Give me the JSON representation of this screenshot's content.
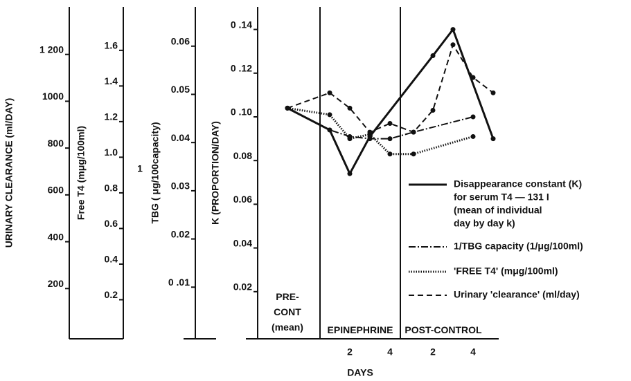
{
  "chart_data": {
    "type": "line",
    "x_label": "DAYS",
    "categories": [
      null,
      null,
      "2",
      null,
      "4",
      null,
      "2",
      null,
      "4",
      null
    ],
    "phases": [
      "PRE-\nCONT\n(mean)",
      "EPINEPHRINE",
      "POST-CONTROL"
    ],
    "axes": [
      {
        "label": "URINARY CLEARANCE (ml/DAY)",
        "ylim": [
          0,
          1400
        ],
        "yticks": [
          200,
          400,
          600,
          800,
          1000,
          {
            "value": 1200,
            "label": "1 200"
          }
        ]
      },
      {
        "label": "Free T4 (mμg/100ml)",
        "ylim": [
          0,
          1.84
        ],
        "yticks": [
          0.2,
          0.4,
          0.6,
          0.8,
          {
            "value": 1,
            "label": "1.0"
          },
          1.2,
          1.4,
          1.6
        ]
      },
      {
        "label": "TBG ( μg/100capacity)",
        "label_prefix": "1",
        "ylim": [
          0,
          0.068
        ],
        "yticks": [
          {
            "value": 0.01,
            "label": "0 .01"
          },
          0.02,
          0.03,
          0.04,
          0.05,
          0.06
        ]
      },
      {
        "label": "K (PROPORTION/DAY)",
        "ylim": [
          0,
          0.15
        ],
        "yticks": [
          0.02,
          0.04,
          0.06,
          {
            "value": 0.08,
            "label": "0.08"
          },
          {
            "value": 0.1,
            "label": "0 .10"
          },
          {
            "value": 0.12,
            "label": "0 .12"
          },
          {
            "value": 0.14,
            "label": "0 .14"
          }
        ]
      }
    ],
    "series": [
      {
        "name": [
          "Disappearance constant (K)",
          "for serum T4 — 131 I",
          "(mean of individual",
          "day by day  k)"
        ],
        "color": "#111",
        "dash": "solid",
        "x": [
          0,
          1,
          2,
          3,
          6,
          7,
          9
        ],
        "values": [
          0.104,
          0.094,
          0.074,
          0.091,
          0.128,
          0.14,
          0.09
        ]
      },
      {
        "name": [
          "1/TBG capacity  (1/μg/100ml)"
        ],
        "color": "#111",
        "dash": "dashdot",
        "x": [
          0,
          1,
          2,
          3,
          4,
          5,
          8
        ],
        "values": [
          0.104,
          0.094,
          0.091,
          0.09,
          0.09,
          0.093,
          0.1
        ]
      },
      {
        "name": [
          "'FREE T4' (mμg/100ml)"
        ],
        "color": "#111",
        "dash": "dotted",
        "x": [
          0,
          1,
          2,
          3,
          4,
          5,
          8
        ],
        "values": [
          0.104,
          0.101,
          0.09,
          0.092,
          0.083,
          0.083,
          0.091
        ]
      },
      {
        "name": [
          "Urinary 'clearance' (ml/day)"
        ],
        "color": "#111",
        "dash": "dashed",
        "x": [
          0,
          1,
          2,
          3,
          4,
          5,
          6,
          7,
          8,
          9
        ],
        "values": [
          0.104,
          0.111,
          0.104,
          0.093,
          0.097,
          0.093,
          0.103,
          0.133,
          0.118,
          0.111
        ]
      }
    ]
  }
}
